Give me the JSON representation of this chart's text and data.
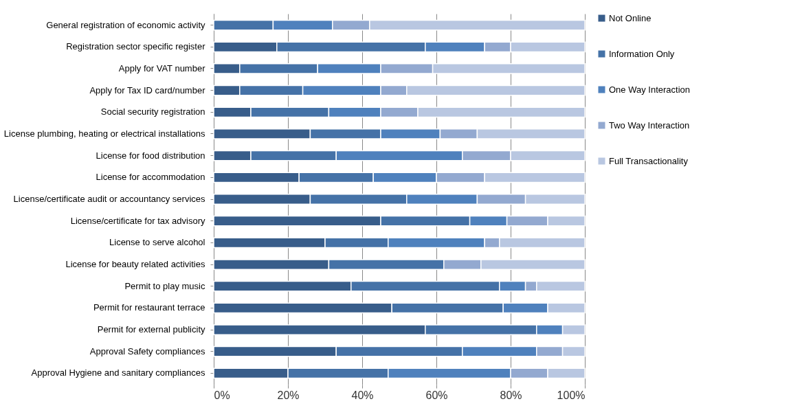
{
  "chart_data": {
    "type": "bar",
    "orientation": "horizontal",
    "stacked": true,
    "grid": "x",
    "legend": "right",
    "categories": [
      "General registration of economic activity",
      "Registration sector specific register",
      "Apply for VAT number",
      "Apply for Tax ID card/number",
      "Social security registration",
      "License plumbing, heating or electrical installations",
      "License for food distribution",
      "License for accommodation",
      "License/certificate audit or accountancy services",
      "License/certificate for tax advisory",
      "License to serve alcohol",
      "License for beauty related activities",
      "Permit to play music",
      "Permit for restaurant terrace",
      "Permit for external publicity",
      "Approval Safety compliances",
      "Approval Hygiene and sanitary compliances"
    ],
    "series": [
      {
        "name": "Not Online",
        "color": "#385d8a",
        "values": [
          0,
          17,
          7,
          7,
          10,
          26,
          10,
          23,
          26,
          45,
          30,
          31,
          37,
          48,
          57,
          33,
          20
        ]
      },
      {
        "name": "Information Only",
        "color": "#4572a7",
        "values": [
          16,
          40,
          21,
          17,
          21,
          19,
          23,
          20,
          26,
          24,
          17,
          31,
          40,
          30,
          30,
          34,
          27
        ]
      },
      {
        "name": "One Way Interaction",
        "color": "#4f81bd",
        "values": [
          16,
          16,
          17,
          21,
          14,
          16,
          34,
          17,
          19,
          10,
          26,
          0,
          7,
          12,
          7,
          20,
          33
        ]
      },
      {
        "name": "Two Way Interaction",
        "color": "#93a9d0",
        "values": [
          10,
          7,
          14,
          7,
          10,
          10,
          13,
          13,
          13,
          11,
          4,
          10,
          3,
          0,
          0,
          7,
          10
        ]
      },
      {
        "name": "Full Transactionality",
        "color": "#b9c7e1",
        "values": [
          58,
          20,
          41,
          48,
          45,
          29,
          20,
          27,
          16,
          10,
          23,
          28,
          13,
          10,
          6,
          6,
          10
        ]
      }
    ],
    "xlim": [
      0,
      100
    ],
    "xticks": [
      {
        "value": 0,
        "label": "0%"
      },
      {
        "value": 20,
        "label": "20%"
      },
      {
        "value": 40,
        "label": "40%"
      },
      {
        "value": 60,
        "label": "60%"
      },
      {
        "value": 80,
        "label": "80%"
      },
      {
        "value": 100,
        "label": "100%"
      }
    ]
  }
}
